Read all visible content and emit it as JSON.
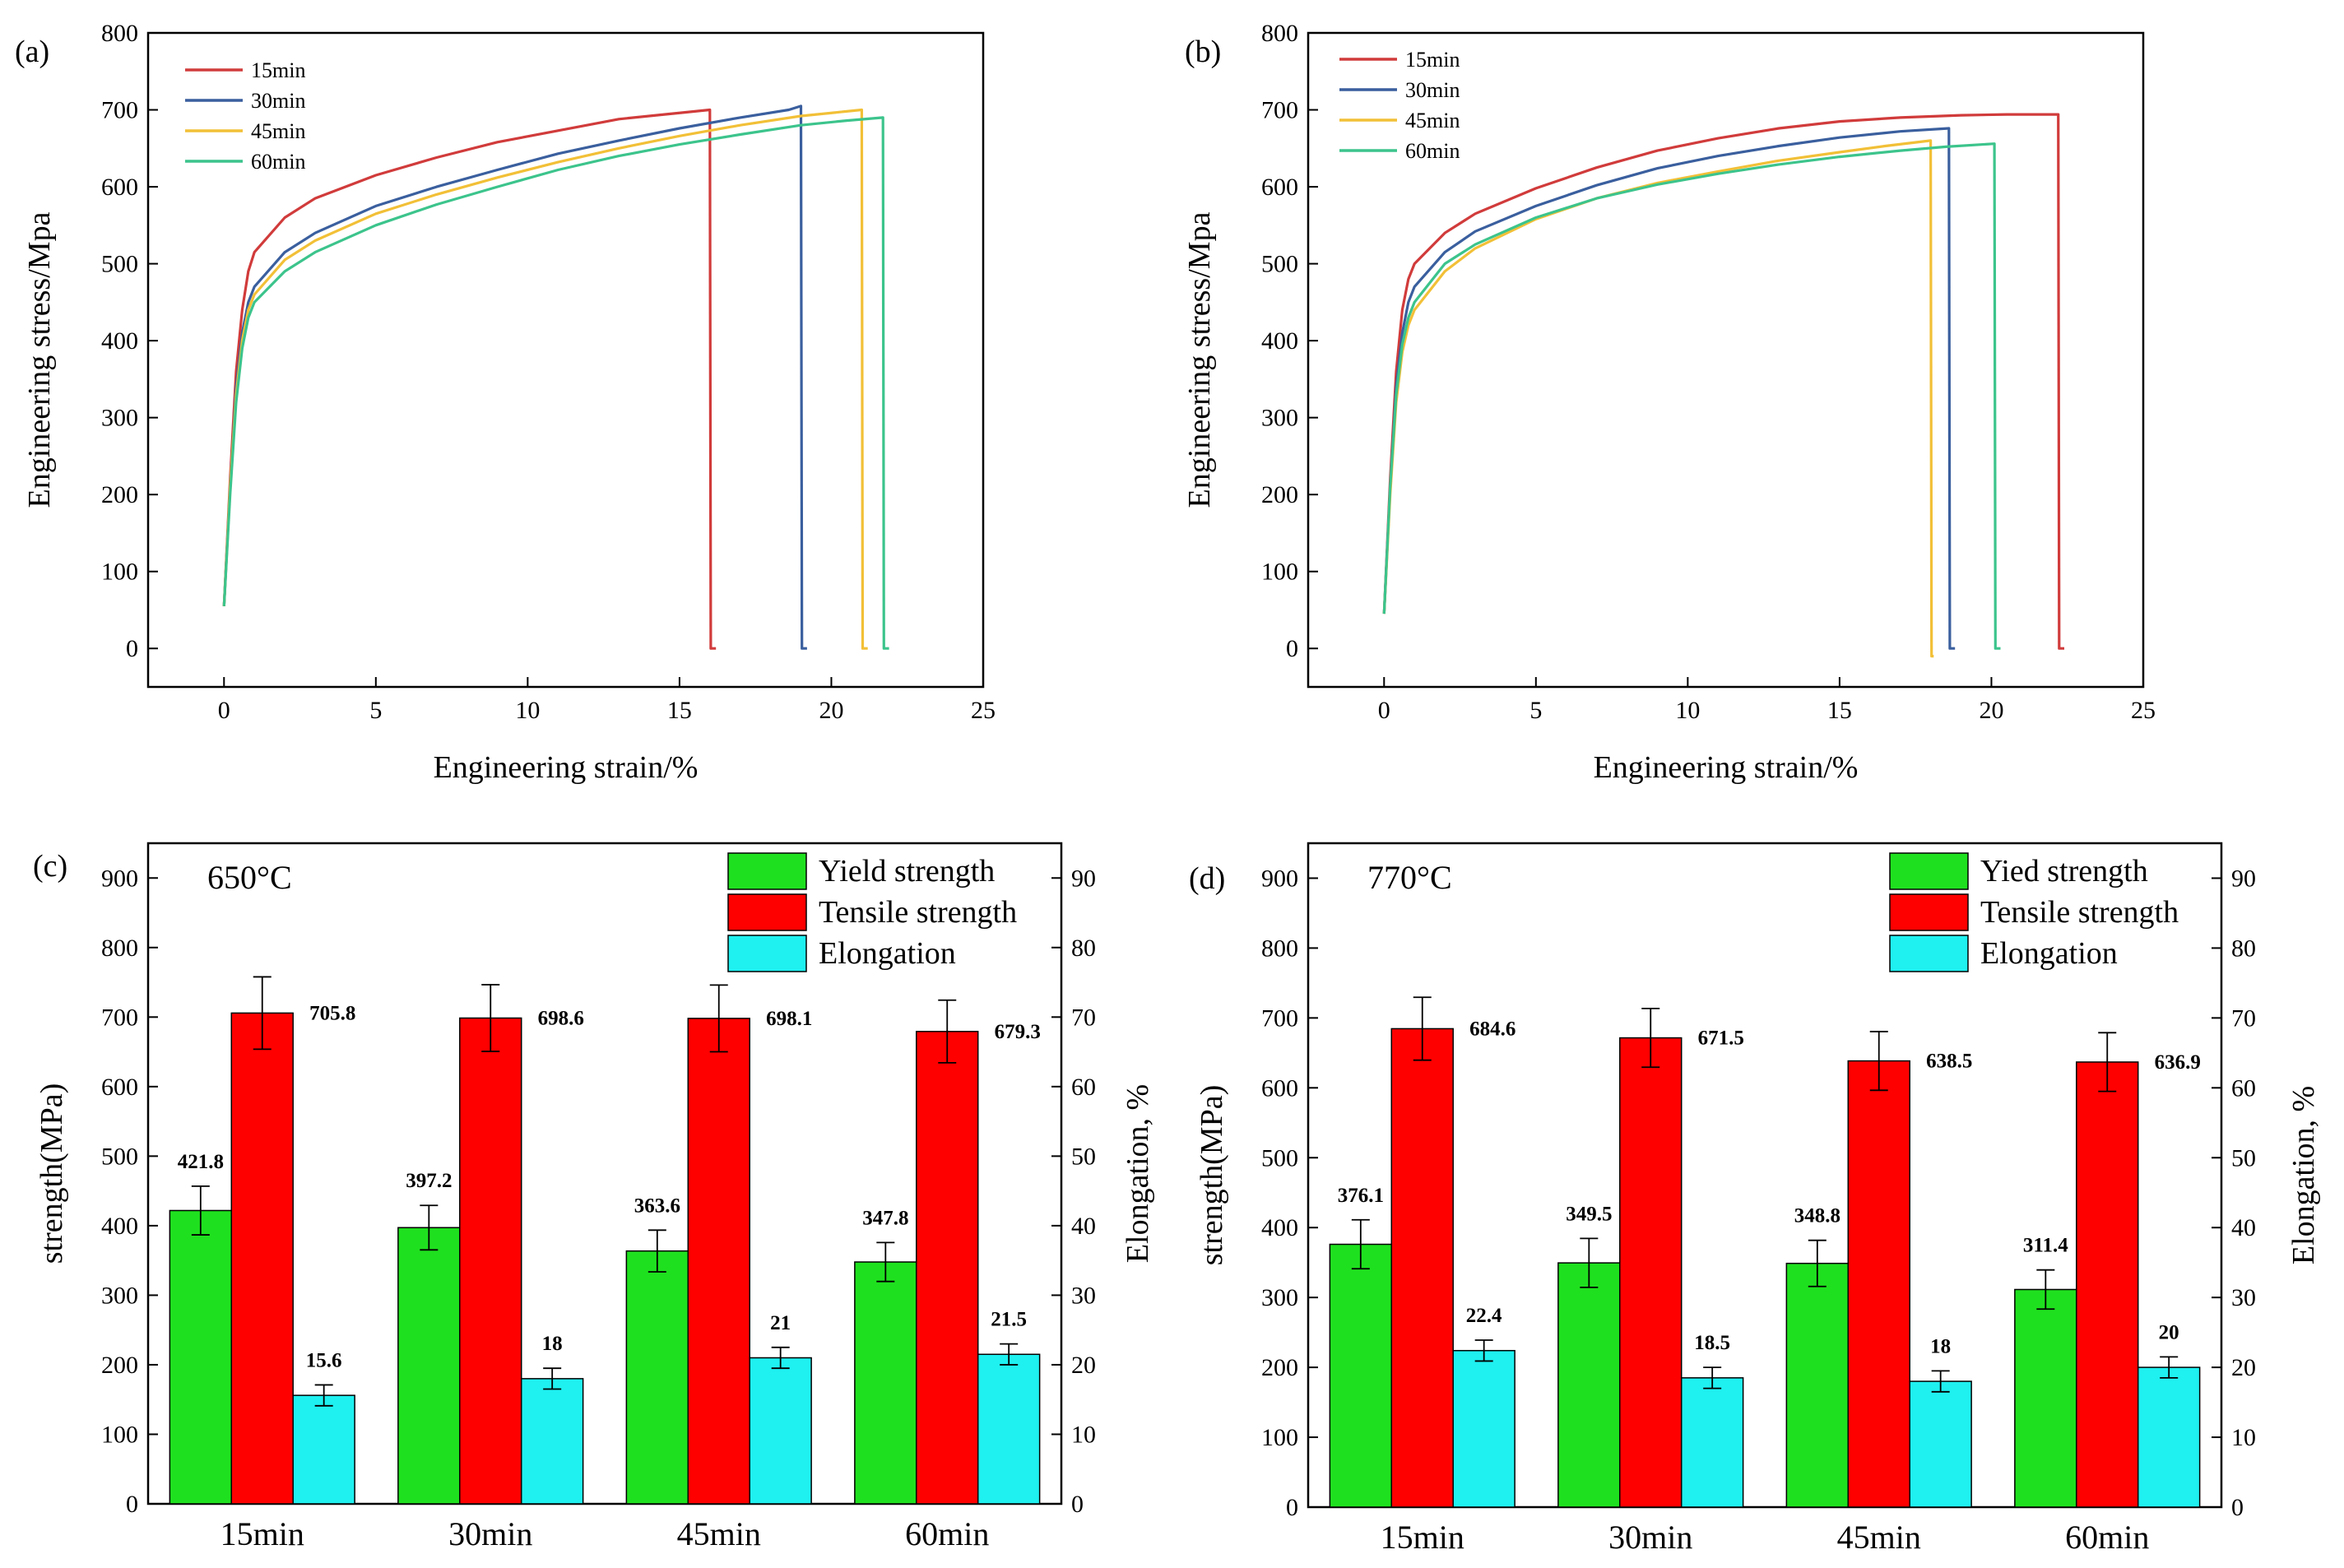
{
  "chart_data": [
    {
      "panel": "(a)",
      "type": "line",
      "xlabel": "Engineering strain/%",
      "ylabel": "Engineering stress/Mpa",
      "xlim": [
        -2.5,
        25
      ],
      "ylim": [
        -50,
        800
      ],
      "xticks": [
        0,
        5,
        10,
        15,
        20,
        25
      ],
      "yticks": [
        0,
        100,
        200,
        300,
        400,
        500,
        600,
        700,
        800
      ],
      "series": [
        {
          "name": "15min",
          "color": "#d13b3b",
          "x": [
            0,
            0.2,
            0.4,
            0.6,
            0.8,
            1.0,
            2,
            3,
            5,
            7,
            9,
            11,
            13,
            14.5,
            15.5,
            16.0,
            16.03,
            16.2
          ],
          "y": [
            55,
            220,
            360,
            440,
            490,
            515,
            560,
            585,
            615,
            638,
            658,
            673,
            688,
            694,
            698,
            700,
            0,
            0
          ]
        },
        {
          "name": "30min",
          "color": "#3a5f9e",
          "x": [
            0,
            0.2,
            0.4,
            0.6,
            0.8,
            1.0,
            2,
            3,
            5,
            7,
            9,
            11,
            13,
            15,
            17,
            18.6,
            19.0,
            19.03,
            19.2
          ],
          "y": [
            55,
            210,
            340,
            410,
            450,
            470,
            515,
            540,
            575,
            600,
            622,
            643,
            660,
            676,
            690,
            700,
            705,
            0,
            0
          ]
        },
        {
          "name": "45min",
          "color": "#f2c037",
          "x": [
            0,
            0.2,
            0.4,
            0.6,
            0.8,
            1.0,
            2,
            3,
            5,
            7,
            9,
            11,
            13,
            15,
            17,
            19,
            20.5,
            21.0,
            21.03,
            21.2
          ],
          "y": [
            55,
            210,
            330,
            400,
            440,
            460,
            505,
            530,
            565,
            590,
            612,
            632,
            650,
            666,
            680,
            692,
            698,
            700,
            0,
            0
          ]
        },
        {
          "name": "60min",
          "color": "#3cc48c",
          "x": [
            0,
            0.2,
            0.4,
            0.6,
            0.8,
            1.0,
            2,
            3,
            5,
            7,
            9,
            11,
            13,
            15,
            17,
            19,
            20.5,
            21.7,
            21.73,
            21.9
          ],
          "y": [
            55,
            200,
            320,
            390,
            430,
            450,
            490,
            515,
            550,
            577,
            600,
            622,
            640,
            655,
            668,
            680,
            686,
            690,
            0,
            0
          ]
        }
      ]
    },
    {
      "panel": "(b)",
      "type": "line",
      "xlabel": "Engineering strain/%",
      "ylabel": "Engineering stress/Mpa",
      "xlim": [
        -2.5,
        25
      ],
      "ylim": [
        -50,
        800
      ],
      "xticks": [
        0,
        5,
        10,
        15,
        20,
        25
      ],
      "yticks": [
        0,
        100,
        200,
        300,
        400,
        500,
        600,
        700,
        800
      ],
      "series": [
        {
          "name": "15min",
          "color": "#d13b3b",
          "x": [
            0,
            0.2,
            0.4,
            0.6,
            0.8,
            1.0,
            2,
            3,
            5,
            7,
            9,
            11,
            13,
            15,
            17,
            19,
            20.5,
            22.2,
            22.23,
            22.4
          ],
          "y": [
            45,
            220,
            360,
            440,
            480,
            500,
            540,
            565,
            598,
            625,
            647,
            663,
            676,
            685,
            690,
            693,
            694,
            694,
            0,
            0
          ]
        },
        {
          "name": "30min",
          "color": "#3a5f9e",
          "x": [
            0,
            0.2,
            0.4,
            0.6,
            0.8,
            1.0,
            2,
            3,
            5,
            7,
            9,
            11,
            13,
            15,
            17,
            18.6,
            18.63,
            18.8
          ],
          "y": [
            45,
            210,
            340,
            410,
            450,
            470,
            515,
            542,
            575,
            602,
            624,
            640,
            653,
            664,
            672,
            676,
            0,
            0
          ]
        },
        {
          "name": "45min",
          "color": "#f2c037",
          "x": [
            0,
            0.2,
            0.4,
            0.6,
            0.8,
            1.0,
            2,
            3,
            5,
            7,
            9,
            11,
            13,
            15,
            16.5,
            18.0,
            18.03,
            18.1
          ],
          "y": [
            45,
            200,
            320,
            385,
            420,
            440,
            490,
            520,
            558,
            585,
            605,
            620,
            634,
            645,
            653,
            660,
            -10,
            -10
          ]
        },
        {
          "name": "60min",
          "color": "#3cc48c",
          "x": [
            0,
            0.2,
            0.4,
            0.6,
            0.8,
            1.0,
            2,
            3,
            5,
            7,
            9,
            11,
            13,
            15,
            17,
            18.5,
            20.1,
            20.13,
            20.3
          ],
          "y": [
            45,
            210,
            330,
            395,
            430,
            450,
            500,
            525,
            560,
            585,
            603,
            617,
            629,
            639,
            647,
            652,
            656,
            0,
            0
          ]
        }
      ]
    },
    {
      "panel": "(c)",
      "type": "bar",
      "annotation": "650°C",
      "categories": [
        "15min",
        "30min",
        "45min",
        "60min"
      ],
      "ylabel": "strength(MPa)",
      "y2label": "Elongation, %",
      "ylim": [
        0,
        950
      ],
      "y2lim": [
        0,
        95
      ],
      "yticks": [
        0,
        100,
        200,
        300,
        400,
        500,
        600,
        700,
        800,
        900
      ],
      "y2ticks": [
        0,
        10,
        20,
        30,
        40,
        50,
        60,
        70,
        80,
        90
      ],
      "series": [
        {
          "name": "Yield strength",
          "color": "#1fe01f",
          "axis": "left",
          "values": [
            421.8,
            397.2,
            363.6,
            347.8
          ],
          "labels": [
            "421.8",
            "397.2",
            "363.6",
            "347.8"
          ],
          "errors": [
            35,
            32,
            30,
            28
          ]
        },
        {
          "name": "Tensile strength",
          "color": "#ff0000",
          "axis": "left",
          "values": [
            705.8,
            698.6,
            698.1,
            679.3
          ],
          "labels": [
            "705.8",
            "698.6",
            "698.1",
            "679.3"
          ],
          "errors": [
            52,
            48,
            48,
            45
          ]
        },
        {
          "name": "Elongation",
          "color": "#1ff0f0",
          "axis": "right",
          "values": [
            15.6,
            18,
            21,
            21.5
          ],
          "labels": [
            "15.6",
            "18",
            "21",
            "21.5"
          ],
          "errors": [
            1.5,
            1.5,
            1.5,
            1.5
          ]
        }
      ]
    },
    {
      "panel": "(d)",
      "type": "bar",
      "annotation": "770°C",
      "categories": [
        "15min",
        "30min",
        "45min",
        "60min"
      ],
      "ylabel": "strength(MPa)",
      "y2label": "Elongation, %",
      "ylim": [
        0,
        950
      ],
      "y2lim": [
        0,
        95
      ],
      "yticks": [
        0,
        100,
        200,
        300,
        400,
        500,
        600,
        700,
        800,
        900
      ],
      "y2ticks": [
        0,
        10,
        20,
        30,
        40,
        50,
        60,
        70,
        80,
        90
      ],
      "series": [
        {
          "name": "Yied strength",
          "color": "#1fe01f",
          "axis": "left",
          "values": [
            376.1,
            349.5,
            348.8,
            311.4
          ],
          "labels": [
            "376.1",
            "349.5",
            "348.8",
            "311.4"
          ],
          "errors": [
            35,
            35,
            33,
            28
          ]
        },
        {
          "name": "Tensile strength",
          "color": "#ff0000",
          "axis": "left",
          "values": [
            684.6,
            671.5,
            638.5,
            636.9
          ],
          "labels": [
            "684.6",
            "671.5",
            "638.5",
            "636.9"
          ],
          "errors": [
            45,
            42,
            42,
            42
          ]
        },
        {
          "name": "Elongation",
          "color": "#1ff0f0",
          "axis": "right",
          "values": [
            22.4,
            18.5,
            18,
            20
          ],
          "labels": [
            "22.4",
            "18.5",
            "18",
            "20"
          ],
          "errors": [
            1.5,
            1.5,
            1.5,
            1.5
          ]
        }
      ]
    }
  ]
}
